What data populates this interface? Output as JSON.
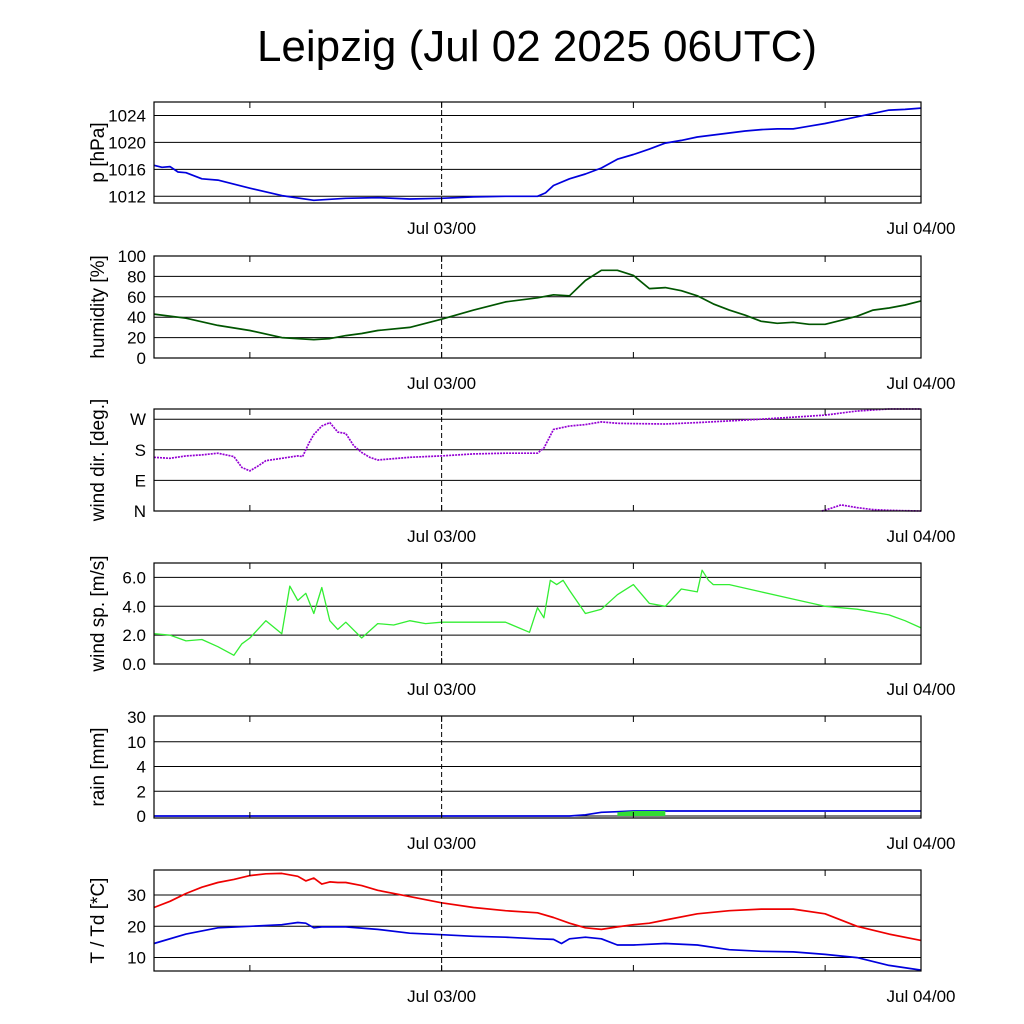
{
  "title": "Leipzig (Jul 02 2025 06UTC)",
  "x_axis": {
    "labels": [
      "Jul 03/00",
      "Jul 04/00"
    ],
    "start": "Jul 02 06UTC",
    "end": "Jul 04 00UTC"
  },
  "colors": {
    "pressure": "#0000dd",
    "humidity": "#005500",
    "wind_dir": "#9400d3",
    "wind_speed": "#33ee33",
    "rain_line": "#0000dd",
    "rain_fill": "#33dd33",
    "temperature": "#ee0000",
    "dewpoint": "#0000dd"
  },
  "chart_data": [
    {
      "type": "line",
      "ylabel": "p [hPa]",
      "ylim": [
        1011,
        1026
      ],
      "yticks": [
        1012,
        1016,
        1020,
        1024
      ],
      "ytick_labels": [
        "1012",
        "1016",
        "1020",
        "1024"
      ],
      "series": [
        {
          "key": "pressure",
          "x": [
            0,
            0.5,
            1,
            1.5,
            2,
            3,
            4,
            6,
            8,
            10,
            12,
            14,
            16,
            18,
            20,
            22,
            24,
            24.5,
            25,
            26,
            27,
            28,
            29,
            30,
            31,
            32,
            33,
            34,
            35,
            36,
            37,
            38,
            39,
            40,
            41,
            42,
            43,
            44,
            45,
            46,
            47,
            48
          ],
          "y": [
            1016.6,
            1016.3,
            1016.4,
            1015.6,
            1015.5,
            1014.6,
            1014.4,
            1013.2,
            1012.1,
            1011.4,
            1011.7,
            1011.8,
            1011.6,
            1011.7,
            1011.9,
            1012.0,
            1012.0,
            1012.5,
            1013.6,
            1014.6,
            1015.3,
            1016.2,
            1017.5,
            1018.2,
            1019.0,
            1019.9,
            1020.3,
            1020.8,
            1021.1,
            1021.4,
            1021.7,
            1021.9,
            1022.0,
            1022.0,
            1022.4,
            1022.8,
            1023.3,
            1023.8,
            1024.3,
            1024.8,
            1024.9,
            1025.1
          ]
        }
      ]
    },
    {
      "type": "line",
      "ylabel": "humidity [%]",
      "ylim": [
        0,
        100
      ],
      "yticks": [
        0,
        20,
        40,
        60,
        80,
        100
      ],
      "ytick_labels": [
        "0",
        "20",
        "40",
        "60",
        "80",
        "100"
      ],
      "series": [
        {
          "key": "humidity",
          "x": [
            0,
            2,
            4,
            6,
            8,
            9,
            10,
            11,
            12,
            13,
            14,
            16,
            18,
            20,
            22,
            24,
            25,
            26,
            27,
            28,
            29,
            30,
            31,
            32,
            33,
            34,
            35,
            36,
            37,
            38,
            39,
            40,
            41,
            42,
            43,
            44,
            45,
            46,
            47,
            48
          ],
          "y": [
            43,
            39,
            32,
            27,
            20,
            19,
            18,
            19,
            22,
            24,
            27,
            30,
            38,
            47,
            55,
            59,
            62,
            61,
            76,
            86,
            86,
            81,
            68,
            69,
            66,
            61,
            53,
            47,
            42,
            36,
            34,
            35,
            33,
            33,
            37,
            41,
            47,
            49,
            52,
            56
          ]
        }
      ]
    },
    {
      "type": "scatter",
      "ylabel": "wind dir. [deg.]",
      "ylim": [
        0,
        300
      ],
      "yticks": [
        0,
        90,
        180,
        270
      ],
      "ytick_labels": [
        "N",
        "E",
        "S",
        "W"
      ],
      "series": [
        {
          "key": "wind_dir",
          "x": [
            0,
            1,
            2,
            3,
            4,
            5,
            5.5,
            6,
            6.5,
            7,
            8,
            9,
            9.3,
            9.7,
            10,
            10.5,
            11,
            11.5,
            12,
            12.5,
            13,
            13.5,
            14,
            16,
            18,
            20,
            22,
            24,
            24.4,
            25,
            26,
            27,
            28,
            29,
            30,
            32,
            34,
            36,
            38,
            40,
            42,
            44,
            46,
            48
          ],
          "y": [
            158,
            155,
            162,
            165,
            170,
            160,
            128,
            118,
            132,
            148,
            155,
            162,
            160,
            200,
            225,
            250,
            260,
            232,
            228,
            192,
            172,
            158,
            150,
            158,
            162,
            168,
            170,
            170,
            185,
            240,
            250,
            254,
            262,
            258,
            257,
            256,
            260,
            265,
            270,
            276,
            282,
            294,
            300,
            300
          ]
        },
        {
          "key": "wind_dir",
          "x": [
            41.8,
            42.5,
            43,
            44,
            45,
            46,
            47,
            48
          ],
          "y": [
            0,
            10,
            18,
            10,
            4,
            2,
            1,
            0
          ]
        }
      ]
    },
    {
      "type": "line",
      "ylabel": "wind sp. [m/s]",
      "ylim": [
        0,
        7
      ],
      "yticks": [
        0,
        2,
        4,
        6
      ],
      "ytick_labels": [
        "0.0",
        "2.0",
        "4.0",
        "6.0"
      ],
      "series": [
        {
          "key": "wind_speed",
          "x": [
            0,
            1,
            2,
            3,
            4,
            5,
            5.5,
            6,
            7,
            8,
            8.5,
            9,
            9.5,
            10,
            10.5,
            11,
            11.5,
            12,
            13,
            14,
            15,
            16,
            17,
            18,
            19,
            20,
            22,
            23.5,
            24,
            24.4,
            24.8,
            25.2,
            25.6,
            26,
            27,
            28,
            29,
            30,
            31,
            32,
            33,
            34,
            34.3,
            34.7,
            35,
            36,
            38,
            40,
            42,
            44,
            46,
            47,
            48
          ],
          "y": [
            2.1,
            2.0,
            1.6,
            1.7,
            1.2,
            0.6,
            1.4,
            1.8,
            3.0,
            2.1,
            5.4,
            4.4,
            4.9,
            3.5,
            5.3,
            3.0,
            2.4,
            2.9,
            1.8,
            2.8,
            2.7,
            3.0,
            2.8,
            2.9,
            2.9,
            2.9,
            2.9,
            2.2,
            3.9,
            3.2,
            5.8,
            5.5,
            5.8,
            5.1,
            3.5,
            3.8,
            4.8,
            5.5,
            4.2,
            4.0,
            5.2,
            5.0,
            6.5,
            5.8,
            5.5,
            5.5,
            5.0,
            4.5,
            4.0,
            3.8,
            3.4,
            3.0,
            2.5
          ]
        }
      ]
    },
    {
      "type": "area",
      "ylabel": "rain [mm]",
      "yscale": "custom",
      "yticks": [
        0,
        2,
        4,
        10,
        30
      ],
      "ytick_labels": [
        "0",
        "2",
        "4",
        "10",
        "30"
      ],
      "series": [
        {
          "key": "rain_line",
          "x": [
            0,
            26,
            27,
            28,
            29,
            30,
            31,
            48
          ],
          "y": [
            0,
            0,
            0.1,
            0.3,
            0.35,
            0.4,
            0.4,
            0.4
          ]
        },
        {
          "key": "rain_fill",
          "x": [
            29,
            29.5,
            30,
            31,
            32
          ],
          "y": [
            0.3,
            0.35,
            0.4,
            0.4,
            0.4
          ]
        }
      ]
    },
    {
      "type": "line",
      "ylabel": "T / Td [*C]",
      "ylim": [
        5.7,
        38
      ],
      "yticks": [
        10,
        20,
        30
      ],
      "ytick_labels": [
        "10",
        "20",
        "30"
      ],
      "series": [
        {
          "key": "temperature",
          "x": [
            0,
            1,
            2,
            3,
            4,
            5,
            6,
            7,
            8,
            9,
            9.5,
            10,
            10.5,
            11,
            11.5,
            12,
            13,
            14,
            16,
            18,
            20,
            22,
            24,
            25,
            26,
            27,
            28,
            29,
            30,
            31,
            32,
            34,
            36,
            38,
            40,
            42,
            44,
            46,
            48
          ],
          "y": [
            26,
            28,
            30.5,
            32.5,
            34,
            35,
            36.2,
            36.8,
            36.9,
            36.0,
            34.5,
            35.4,
            33.5,
            34.2,
            34.0,
            34.0,
            33.0,
            31.5,
            29.5,
            27.5,
            26,
            25,
            24.3,
            22.8,
            21.0,
            19.5,
            19.0,
            19.8,
            20.5,
            21.0,
            22.0,
            24.0,
            25.0,
            25.5,
            25.5,
            24.0,
            20.0,
            17.5,
            15.5
          ]
        },
        {
          "key": "dewpoint",
          "x": [
            0,
            2,
            4,
            6,
            8,
            9,
            9.5,
            10,
            10.5,
            11,
            12,
            14,
            16,
            18,
            20,
            22,
            24,
            25,
            25.5,
            26,
            27,
            28,
            29,
            30,
            32,
            34,
            36,
            38,
            40,
            42,
            44,
            46,
            48
          ],
          "y": [
            14.5,
            17.5,
            19.5,
            20.0,
            20.5,
            21.2,
            21.0,
            19.5,
            19.8,
            19.8,
            19.8,
            19.0,
            17.8,
            17.3,
            16.8,
            16.5,
            16.0,
            15.8,
            14.5,
            16.0,
            16.5,
            16.0,
            14.0,
            14.0,
            14.5,
            14.0,
            12.5,
            12.0,
            11.8,
            11.0,
            10.0,
            7.5,
            6.0
          ]
        }
      ]
    }
  ]
}
